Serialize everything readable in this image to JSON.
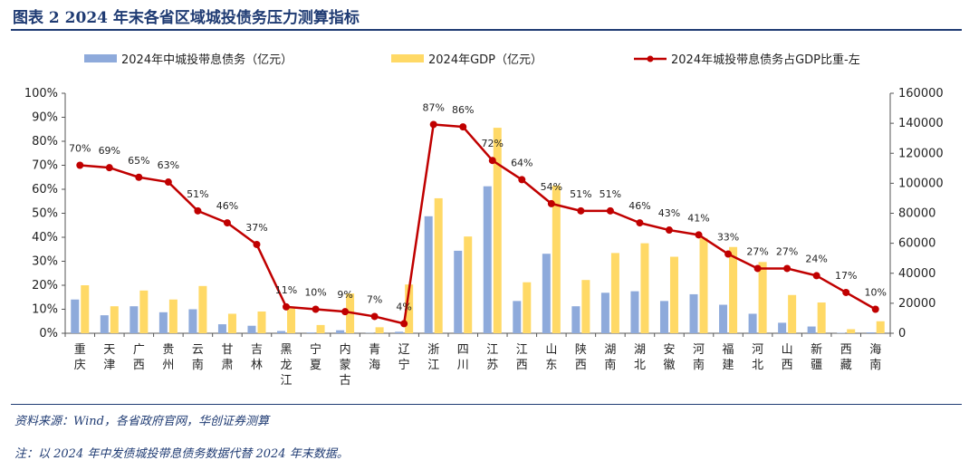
{
  "header": {
    "title": "图表 2   2024 年末各省区域城投债务压力测算指标"
  },
  "footer": {
    "source": "资料来源：Wind，各省政府官网，华创证券测算",
    "note": "注：以 2024 年中发债城投带息债务数据代替 2024 年末数据。"
  },
  "colors": {
    "debt_bar": "#8eaadb",
    "gdp_bar": "#ffd966",
    "ratio_line": "#c00000"
  },
  "chart_data": {
    "type": "bar+line",
    "categories": [
      "重庆",
      "天津",
      "广西",
      "贵州",
      "云南",
      "甘肃",
      "吉林",
      "黑龙江",
      "宁夏",
      "内蒙古",
      "青海",
      "辽宁",
      "浙江",
      "四川",
      "江苏",
      "江西",
      "山东",
      "陕西",
      "湖南",
      "湖北",
      "安徽",
      "河南",
      "福建",
      "河北",
      "山西",
      "新疆",
      "西藏",
      "海南"
    ],
    "series": [
      {
        "name": "2024年中城投带息债务（亿元）",
        "type": "bar",
        "axis": "right",
        "values": [
          22500,
          12000,
          18000,
          14000,
          16000,
          6000,
          5000,
          1500,
          500,
          2000,
          200,
          1000,
          78000,
          55000,
          98000,
          21500,
          53000,
          18000,
          27000,
          28000,
          21500,
          26000,
          19000,
          13000,
          7000,
          4500,
          300,
          600
        ]
      },
      {
        "name": "2024年GDP（亿元）",
        "type": "bar",
        "axis": "right",
        "values": [
          32000,
          18000,
          28500,
          22500,
          31500,
          13000,
          14500,
          16500,
          5500,
          26500,
          4000,
          32500,
          90000,
          64500,
          137000,
          34000,
          98500,
          35500,
          53500,
          60000,
          51000,
          63500,
          57500,
          47500,
          25500,
          20500,
          2700,
          8000
        ]
      },
      {
        "name": "2024年城投带息债务占GDP比重-左",
        "type": "line",
        "axis": "left",
        "values": [
          70,
          69,
          65,
          63,
          51,
          46,
          37,
          11,
          10,
          9,
          7,
          4,
          87,
          86,
          72,
          64,
          54,
          51,
          51,
          46,
          43,
          41,
          33,
          27,
          27,
          24,
          17,
          10
        ],
        "labels": [
          "70%",
          "69%",
          "65%",
          "63%",
          "51%",
          "46%",
          "37%",
          "11%",
          "10%",
          "9%",
          "7%",
          "4%",
          "87%",
          "86%",
          "72%",
          "64%",
          "54%",
          "51%",
          "51%",
          "46%",
          "43%",
          "41%",
          "33%",
          "27%",
          "27%",
          "24%",
          "17%",
          "10%"
        ]
      }
    ],
    "yleft": {
      "min": 0,
      "max": 100,
      "ticks": [
        "0%",
        "10%",
        "20%",
        "30%",
        "40%",
        "50%",
        "60%",
        "70%",
        "80%",
        "90%",
        "100%"
      ]
    },
    "yright": {
      "min": 0,
      "max": 160000,
      "ticks": [
        "0",
        "20000",
        "40000",
        "60000",
        "80000",
        "100000",
        "120000",
        "140000",
        "160000"
      ]
    },
    "legend_position": "top"
  }
}
